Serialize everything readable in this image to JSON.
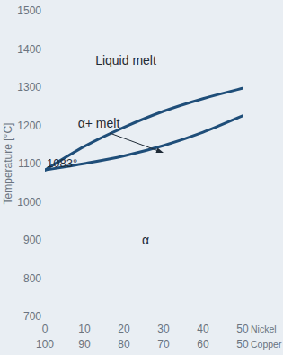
{
  "chart_data": {
    "type": "line",
    "x_label": "Nickel",
    "x2_label": "Copper",
    "y_label": "Temperature [°C]",
    "x": [
      0,
      10,
      20,
      30,
      40,
      50
    ],
    "series": [
      {
        "color": "#1f4e79",
        "values": [
          1083,
          1145,
          1195,
          1237,
          1270,
          1297
        ]
      },
      {
        "color": "#1f4e79",
        "values": [
          1083,
          1100,
          1120,
          1147,
          1182,
          1225
        ]
      }
    ],
    "xlim": [
      0,
      50
    ],
    "xticks": [
      0,
      10,
      20,
      30,
      40,
      50
    ],
    "x2lim": [
      100,
      50
    ],
    "x2ticks": [
      100,
      90,
      80,
      70,
      60,
      50
    ],
    "ylim": [
      700,
      1500
    ],
    "yticks": [
      700,
      800,
      900,
      1000,
      1100,
      1200,
      1300,
      1400,
      1500
    ],
    "grid": false,
    "annotations": [
      {
        "text": "Liquid melt"
      },
      {
        "text": "α+ melt"
      },
      {
        "text": "α"
      },
      {
        "text": "1083°"
      }
    ]
  }
}
